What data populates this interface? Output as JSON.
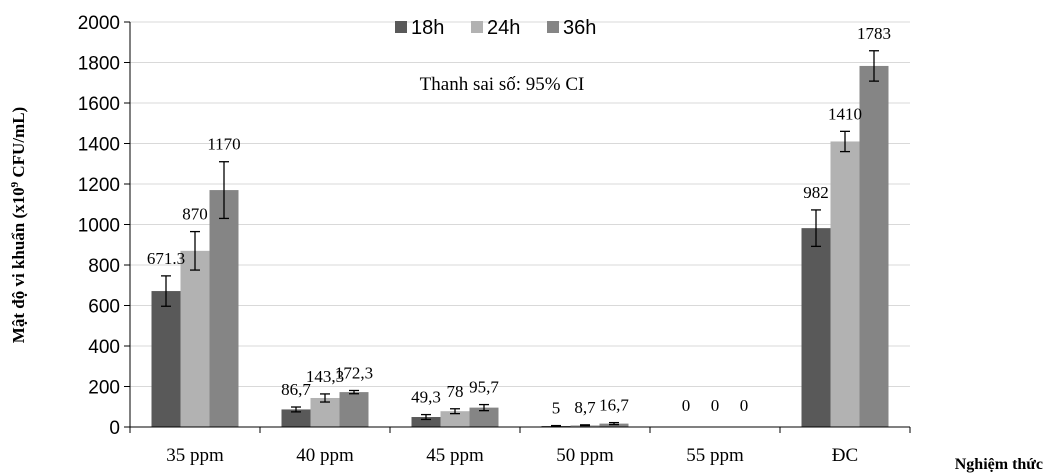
{
  "chart_data": {
    "type": "bar",
    "title": "",
    "xlabel": "Nghiệm thức",
    "ylabel_main": "Mật độ vi khuẩn (x10",
    "ylabel_sup": "9",
    "ylabel_tail": " CFU/mL)",
    "annotation": "Thanh sai số: 95% CI",
    "categories": [
      "35 ppm",
      "40 ppm",
      "45 ppm",
      "50 ppm",
      "55 ppm",
      "ĐC"
    ],
    "ylim": [
      0,
      2000
    ],
    "yticks": [
      0,
      200,
      400,
      600,
      800,
      1000,
      1200,
      1400,
      1600,
      1800,
      2000
    ],
    "grid": true,
    "legend_position": "top-center",
    "series": [
      {
        "name": "18h",
        "color": "#595959",
        "values": [
          671.3,
          86.7,
          49.3,
          5,
          0,
          982
        ],
        "labels": [
          "671.3",
          "86,7",
          "49,3",
          "5",
          "0",
          "982"
        ],
        "error": [
          75,
          12,
          12,
          2,
          0,
          90
        ]
      },
      {
        "name": "24h",
        "color": "#b2b2b2",
        "values": [
          870,
          143.3,
          78,
          8.7,
          0,
          1410
        ],
        "labels": [
          "870",
          "143,3",
          "78",
          "8,7",
          "0",
          "1410"
        ],
        "error": [
          95,
          20,
          12,
          2,
          0,
          50
        ]
      },
      {
        "name": "36h",
        "color": "#858585",
        "values": [
          1170,
          172.3,
          95.7,
          16.7,
          0,
          1783
        ],
        "labels": [
          "1170",
          "172,3",
          "95,7",
          "16,7",
          "0",
          "1783"
        ],
        "error": [
          140,
          8,
          15,
          5,
          0,
          75
        ]
      }
    ]
  }
}
